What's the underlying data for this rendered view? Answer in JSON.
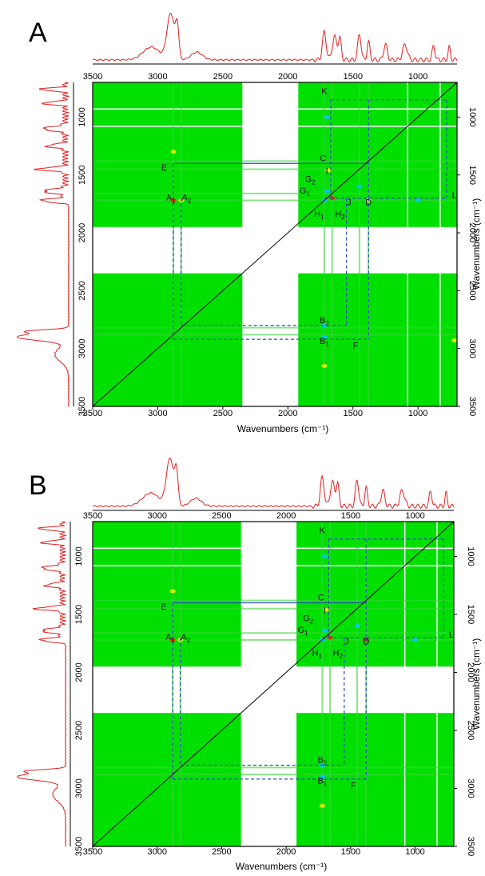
{
  "colors": {
    "background": "#ffffff",
    "map_green": "#00e000",
    "spectrum": "#e02020",
    "dashed_line": "#2a4fbf",
    "axis": "#000000",
    "peak_cyan": "#00c8ff",
    "peak_yellow": "#f0f000",
    "peak_red": "#ff2000"
  },
  "chart_data": [
    {
      "type": "heatmap",
      "panel_label": "A",
      "xlabel": "Wavenumbers (cm⁻¹)",
      "ylabel": "Wavenumbers (cm⁻¹)",
      "xlim": [
        3500,
        700
      ],
      "ylim": [
        700,
        3500
      ],
      "top_ticks": [
        "3500",
        "3000",
        "2500",
        "2000",
        "1500",
        "1000"
      ],
      "bottom_ticks": [
        "3500",
        "3000",
        "2500",
        "2000",
        "1500",
        "1000"
      ],
      "left_ticks": [
        "1000",
        "1500",
        "2000",
        "2500",
        "3000",
        "3500"
      ],
      "right_ticks": [
        "1000",
        "1500",
        "2000",
        "2500",
        "3000",
        "3500"
      ],
      "diagonal": true,
      "blocks": [
        [
          3500,
          2350,
          700,
          1950
        ],
        [
          1920,
          700,
          700,
          1950
        ],
        [
          3500,
          2350,
          2350,
          3500
        ],
        [
          1920,
          700,
          2350,
          3500
        ]
      ],
      "dashed_boxes": [
        [
          2880,
          2880,
          1400,
          2920
        ],
        [
          1380,
          1380,
          1700,
          2920
        ],
        [
          2820,
          2820,
          1700,
          2800
        ],
        [
          1550,
          1550,
          1700,
          2800
        ],
        [
          1670,
          1670,
          850,
          1700
        ],
        [
          780,
          780,
          850,
          1700
        ],
        [
          1380,
          1380,
          850,
          1700
        ]
      ],
      "labels": [
        {
          "text": "A",
          "sub": "1",
          "x": 2900,
          "y": 1720
        },
        {
          "text": "A",
          "sub": "2",
          "x": 2780,
          "y": 1720
        },
        {
          "text": "E",
          "sub": "",
          "x": 2950,
          "y": 1460
        },
        {
          "text": "C",
          "sub": "",
          "x": 1730,
          "y": 1380
        },
        {
          "text": "I",
          "sub": "",
          "x": 1700,
          "y": 1490
        },
        {
          "text": "G",
          "sub": "2",
          "x": 1830,
          "y": 1560
        },
        {
          "text": "G",
          "sub": "1",
          "x": 1870,
          "y": 1660
        },
        {
          "text": "H",
          "sub": "1",
          "x": 1760,
          "y": 1860
        },
        {
          "text": "H",
          "sub": "2",
          "x": 1600,
          "y": 1860
        },
        {
          "text": "J",
          "sub": "",
          "x": 1530,
          "y": 1760
        },
        {
          "text": "D",
          "sub": "",
          "x": 1380,
          "y": 1760
        },
        {
          "text": "K",
          "sub": "",
          "x": 1720,
          "y": 800
        },
        {
          "text": "L",
          "sub": "",
          "x": 720,
          "y": 1700
        },
        {
          "text": "B",
          "sub": "2",
          "x": 1720,
          "y": 2780
        },
        {
          "text": "B",
          "sub": "1",
          "x": 1720,
          "y": 2960
        },
        {
          "text": "F",
          "sub": "",
          "x": 1480,
          "y": 3000
        }
      ],
      "peaks": [
        {
          "x": 2880,
          "y": 1720,
          "c": "red"
        },
        {
          "x": 2820,
          "y": 1720,
          "c": "yellow"
        },
        {
          "x": 1720,
          "y": 1720,
          "c": "cyan"
        },
        {
          "x": 1660,
          "y": 1700,
          "c": "red"
        },
        {
          "x": 1700,
          "y": 1640,
          "c": "cyan"
        },
        {
          "x": 1690,
          "y": 1460,
          "c": "yellow"
        },
        {
          "x": 1380,
          "y": 1720,
          "c": "yellow"
        },
        {
          "x": 1450,
          "y": 1600,
          "c": "cyan"
        },
        {
          "x": 1720,
          "y": 2900,
          "c": "cyan"
        },
        {
          "x": 1720,
          "y": 2800,
          "c": "cyan"
        },
        {
          "x": 1720,
          "y": 3150,
          "c": "yellow"
        },
        {
          "x": 720,
          "y": 2930,
          "c": "yellow"
        },
        {
          "x": 2880,
          "y": 1300,
          "c": "yellow"
        },
        {
          "x": 1700,
          "y": 1000,
          "c": "cyan"
        },
        {
          "x": 1000,
          "y": 1720,
          "c": "cyan"
        }
      ]
    },
    {
      "type": "heatmap",
      "panel_label": "B",
      "xlabel": "Wavenumbers (cm⁻¹)",
      "ylabel": "Wavenumbers (cm⁻¹)",
      "xlim": [
        3500,
        700
      ],
      "ylim": [
        700,
        3500
      ],
      "top_ticks": [
        "3500",
        "3000",
        "2500",
        "2000",
        "1500",
        "1000"
      ],
      "bottom_ticks": [
        "3500",
        "3000",
        "2500",
        "2000",
        "1500",
        "1000"
      ],
      "left_ticks": [
        "1000",
        "1500",
        "2000",
        "2500",
        "3000",
        "3500"
      ],
      "right_ticks": [
        "1000",
        "1500",
        "2000",
        "2500",
        "3000",
        "3500"
      ],
      "diagonal": true,
      "blocks": [
        [
          3500,
          2350,
          700,
          1950
        ],
        [
          1920,
          700,
          700,
          1950
        ],
        [
          3500,
          2350,
          2350,
          3500
        ],
        [
          1920,
          700,
          2350,
          3500
        ]
      ],
      "dashed_boxes": [
        [
          2880,
          2880,
          1400,
          2920
        ],
        [
          1380,
          1380,
          1700,
          2920
        ],
        [
          2820,
          2820,
          1700,
          2800
        ],
        [
          1550,
          1550,
          1700,
          2800
        ],
        [
          1670,
          1670,
          850,
          1700
        ],
        [
          780,
          780,
          850,
          1700
        ],
        [
          1380,
          1380,
          850,
          1700
        ]
      ],
      "labels": [
        {
          "text": "A",
          "sub": "1",
          "x": 2900,
          "y": 1720
        },
        {
          "text": "A",
          "sub": "2",
          "x": 2780,
          "y": 1720
        },
        {
          "text": "E",
          "sub": "",
          "x": 2950,
          "y": 1460
        },
        {
          "text": "C",
          "sub": "",
          "x": 1730,
          "y": 1380
        },
        {
          "text": "I",
          "sub": "",
          "x": 1700,
          "y": 1490
        },
        {
          "text": "G",
          "sub": "2",
          "x": 1830,
          "y": 1560
        },
        {
          "text": "G",
          "sub": "1",
          "x": 1870,
          "y": 1660
        },
        {
          "text": "H",
          "sub": "1",
          "x": 1760,
          "y": 1860
        },
        {
          "text": "H",
          "sub": "2",
          "x": 1600,
          "y": 1860
        },
        {
          "text": "J",
          "sub": "",
          "x": 1530,
          "y": 1760
        },
        {
          "text": "D",
          "sub": "",
          "x": 1380,
          "y": 1760
        },
        {
          "text": "K",
          "sub": "",
          "x": 1720,
          "y": 800
        },
        {
          "text": "L",
          "sub": "",
          "x": 720,
          "y": 1700
        },
        {
          "text": "B",
          "sub": "2",
          "x": 1720,
          "y": 2780
        },
        {
          "text": "B",
          "sub": "1",
          "x": 1720,
          "y": 2960
        },
        {
          "text": "F",
          "sub": "",
          "x": 1480,
          "y": 3000
        }
      ],
      "peaks": [
        {
          "x": 2880,
          "y": 1720,
          "c": "red"
        },
        {
          "x": 2820,
          "y": 1720,
          "c": "yellow"
        },
        {
          "x": 1720,
          "y": 1720,
          "c": "cyan"
        },
        {
          "x": 1660,
          "y": 1700,
          "c": "red"
        },
        {
          "x": 1700,
          "y": 1640,
          "c": "cyan"
        },
        {
          "x": 1690,
          "y": 1460,
          "c": "yellow"
        },
        {
          "x": 1380,
          "y": 1720,
          "c": "red"
        },
        {
          "x": 1450,
          "y": 1600,
          "c": "cyan"
        },
        {
          "x": 1720,
          "y": 2900,
          "c": "cyan"
        },
        {
          "x": 1720,
          "y": 2800,
          "c": "cyan"
        },
        {
          "x": 1720,
          "y": 3150,
          "c": "yellow"
        },
        {
          "x": 2880,
          "y": 1300,
          "c": "yellow"
        },
        {
          "x": 1700,
          "y": 1000,
          "c": "cyan"
        },
        {
          "x": 1000,
          "y": 1720,
          "c": "cyan"
        }
      ]
    }
  ]
}
